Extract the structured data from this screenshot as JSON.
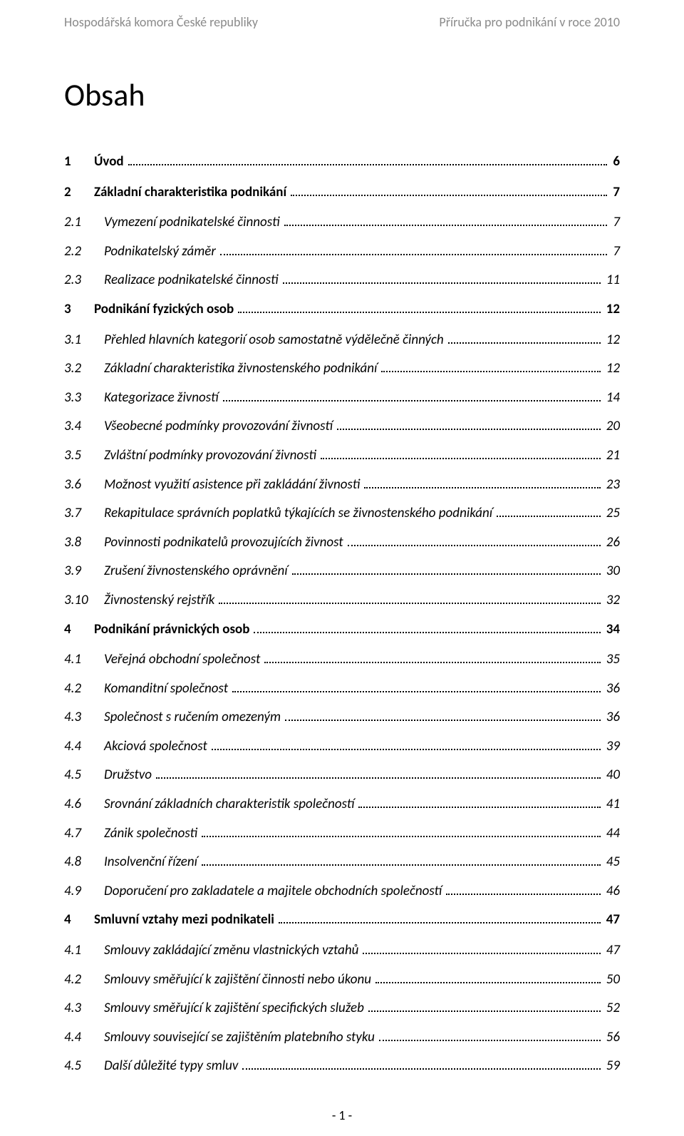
{
  "header": {
    "left": "Hospodářská komora České republiky",
    "right": "Příručka pro podnikání v roce 2010"
  },
  "title": "Obsah",
  "toc": [
    {
      "level": 1,
      "num": "1",
      "text": "Úvod",
      "page": "6"
    },
    {
      "level": 1,
      "num": "2",
      "text": "Základní charakteristika podnikání",
      "page": "7"
    },
    {
      "level": 2,
      "num": "2.1",
      "text": "Vymezení podnikatelské činnosti",
      "page": "7"
    },
    {
      "level": 2,
      "num": "2.2",
      "text": "Podnikatelský záměr",
      "page": "7"
    },
    {
      "level": 2,
      "num": "2.3",
      "text": "Realizace podnikatelské činnosti",
      "page": "11"
    },
    {
      "level": 1,
      "num": "3",
      "text": "Podnikání fyzických osob",
      "page": "12"
    },
    {
      "level": 2,
      "num": "3.1",
      "text": "Přehled hlavních kategorií osob samostatně výdělečně činných",
      "page": "12"
    },
    {
      "level": 2,
      "num": "3.2",
      "text": "Základní charakteristika živnostenského podnikání",
      "page": "12"
    },
    {
      "level": 2,
      "num": "3.3",
      "text": "Kategorizace živností",
      "page": "14"
    },
    {
      "level": 2,
      "num": "3.4",
      "text": "Všeobecné podmínky provozování živností",
      "page": "20"
    },
    {
      "level": 2,
      "num": "3.5",
      "text": "Zvláštní podmínky provozování živnosti",
      "page": "21"
    },
    {
      "level": 2,
      "num": "3.6",
      "text": "Možnost využití asistence při zakládání živnosti",
      "page": "23"
    },
    {
      "level": 2,
      "num": "3.7",
      "text": "Rekapitulace správních poplatků týkajících se živnostenského podnikání",
      "page": "25"
    },
    {
      "level": 2,
      "num": "3.8",
      "text": "Povinnosti podnikatelů provozujících živnost",
      "page": "26"
    },
    {
      "level": 2,
      "num": "3.9",
      "text": "Zrušení živnostenského oprávnění",
      "page": "30"
    },
    {
      "level": 2,
      "num": "3.10",
      "text": "Živnostenský rejstřík",
      "page": "32"
    },
    {
      "level": 1,
      "num": "4",
      "text": "Podnikání právnických osob",
      "page": "34"
    },
    {
      "level": 2,
      "num": "4.1",
      "text": "Veřejná obchodní společnost",
      "page": "35"
    },
    {
      "level": 2,
      "num": "4.2",
      "text": "Komanditní společnost",
      "page": "36"
    },
    {
      "level": 2,
      "num": "4.3",
      "text": "Společnost s ručením omezeným",
      "page": "36"
    },
    {
      "level": 2,
      "num": "4.4",
      "text": "Akciová společnost",
      "page": "39"
    },
    {
      "level": 2,
      "num": "4.5",
      "text": "Družstvo",
      "page": "40"
    },
    {
      "level": 2,
      "num": "4.6",
      "text": "Srovnání základních charakteristik společností",
      "page": "41"
    },
    {
      "level": 2,
      "num": "4.7",
      "text": "Zánik společnosti",
      "page": "44"
    },
    {
      "level": 2,
      "num": "4.8",
      "text": "Insolvenční řízení",
      "page": "45"
    },
    {
      "level": 2,
      "num": "4.9",
      "text": "Doporučení pro zakladatele a majitele obchodních společností",
      "page": "46"
    },
    {
      "level": 1,
      "num": "4",
      "text": "Smluvní vztahy mezi podnikateli",
      "page": "47"
    },
    {
      "level": 2,
      "num": "4.1",
      "text": "Smlouvy zakládající změnu vlastnických vztahů",
      "page": "47"
    },
    {
      "level": 2,
      "num": "4.2",
      "text": "Smlouvy směřující k zajištění činnosti nebo úkonu",
      "page": "50"
    },
    {
      "level": 2,
      "num": "4.3",
      "text": "Smlouvy směřující k zajištění specifických služeb",
      "page": "52"
    },
    {
      "level": 2,
      "num": "4.4",
      "text": "Smlouvy související se zajištěním platebního styku",
      "page": "56"
    },
    {
      "level": 2,
      "num": "4.5",
      "text": "Další důležité typy smluv",
      "page": "59"
    }
  ],
  "footer": "- 1 -"
}
